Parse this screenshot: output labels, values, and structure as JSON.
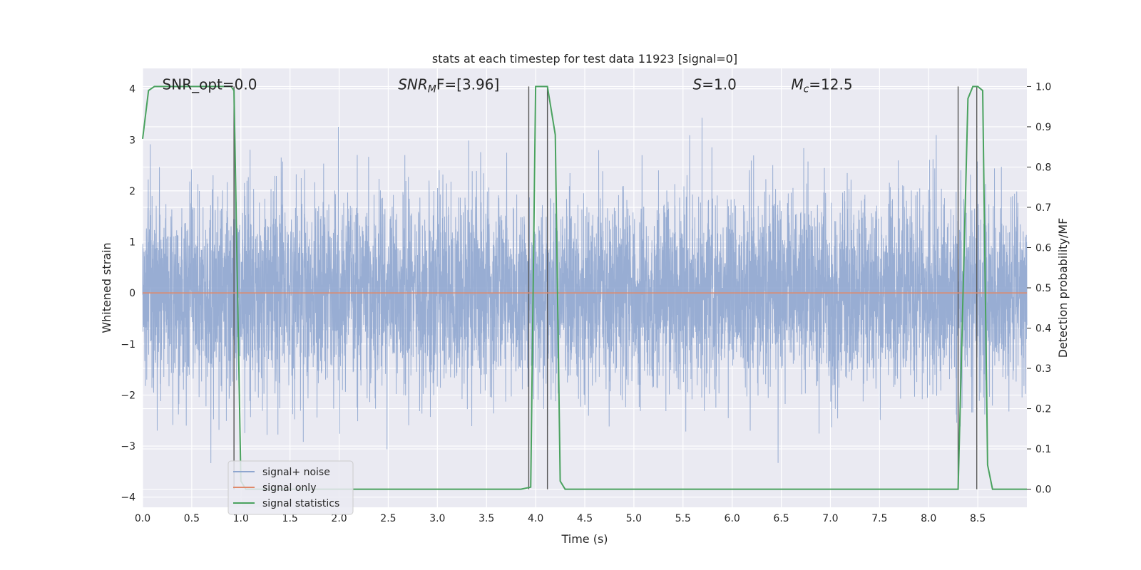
{
  "chart_data": {
    "type": "line",
    "title": "stats at each timestep for test data 11923 [signal=0]",
    "xlabel": "Time (s)",
    "ylabel": "Whitened strain",
    "ylabel_right": "Detection probability/MF",
    "xlim": [
      0.0,
      9.0
    ],
    "ylim": [
      -4.2,
      4.4
    ],
    "ylim_right": [
      -0.045,
      1.045
    ],
    "x_ticks": [
      "0.0",
      "0.5",
      "1.0",
      "1.5",
      "2.0",
      "2.5",
      "3.0",
      "3.5",
      "4.0",
      "4.5",
      "5.0",
      "5.5",
      "6.0",
      "6.5",
      "7.0",
      "7.5",
      "8.0",
      "8.5"
    ],
    "y_ticks": [
      "4",
      "3",
      "2",
      "1",
      "0",
      "−1",
      "−2",
      "−3",
      "−4"
    ],
    "y_ticks_right": [
      "1.0",
      "0.9",
      "0.8",
      "0.7",
      "0.6",
      "0.5",
      "0.4",
      "0.3",
      "0.2",
      "0.1",
      "0.0"
    ],
    "grid": true,
    "legend_position": "bottom-left",
    "annotations": [
      {
        "x": 0.2,
        "y": 4.0,
        "text": "SNR_opt=0.0"
      },
      {
        "x": 2.6,
        "y": 4.0,
        "base": "SNR",
        "sub": "M",
        "tail": "F=[3.96]"
      },
      {
        "x": 5.6,
        "y": 4.0,
        "base": "S",
        "sub": "",
        "tail": "=1.0"
      },
      {
        "x": 6.6,
        "y": 4.0,
        "base": "M",
        "sub": "c",
        "tail": "=12.5"
      }
    ],
    "series": [
      {
        "name": "signal+ noise",
        "color": "#8fa6cf",
        "description": "whitened noise, roughly Gaussian with sigma ~1, peaks near ±4"
      },
      {
        "name": "signal only",
        "color": "#e0896a",
        "y": 0.0
      },
      {
        "name": "signal statistics",
        "color": "#4aa25f",
        "axis": "right",
        "x": [
          0.0,
          0.06,
          0.12,
          0.2,
          0.5,
          0.9,
          0.93,
          1.0,
          1.05,
          1.1,
          1.5,
          2.0,
          3.0,
          3.6,
          3.85,
          3.95,
          4.0,
          4.05,
          4.12,
          4.2,
          4.25,
          4.3,
          5.0,
          6.0,
          7.0,
          8.0,
          8.3,
          8.4,
          8.45,
          8.5,
          8.55,
          8.6,
          8.65,
          9.0
        ],
        "y": [
          0.87,
          0.99,
          1.0,
          1.0,
          1.0,
          1.0,
          0.99,
          0.02,
          0.0,
          0.0,
          0.0,
          0.0,
          0.0,
          0.0,
          0.0,
          0.005,
          1.0,
          1.0,
          1.0,
          0.88,
          0.02,
          0.0,
          0.0,
          0.0,
          0.0,
          0.0,
          0.0,
          0.97,
          1.0,
          1.0,
          0.99,
          0.06,
          0.0,
          0.0
        ]
      }
    ],
    "vertical_lines": [
      0.93,
      3.93,
      4.12,
      8.3,
      8.49
    ]
  }
}
